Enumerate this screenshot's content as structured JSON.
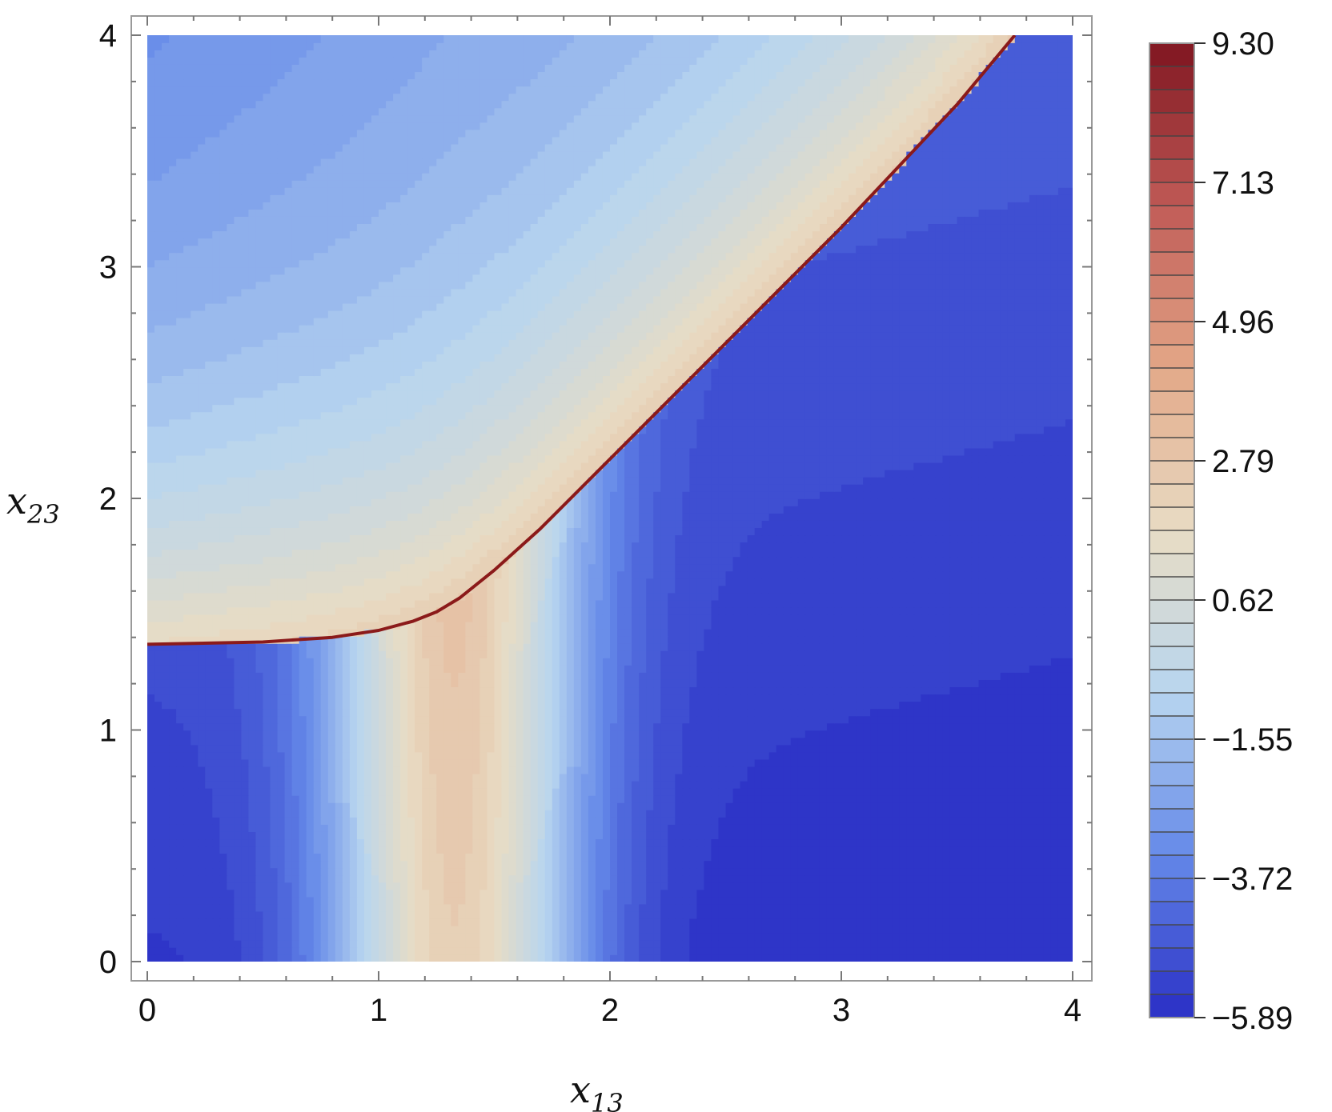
{
  "chart_data": {
    "type": "heatmap",
    "title": "",
    "xlabel": {
      "base": "x",
      "sub": "13"
    },
    "ylabel": {
      "base": "x",
      "sub": "23"
    },
    "xlim": [
      0,
      4
    ],
    "ylim": [
      0,
      4
    ],
    "x_ticks": [
      "0",
      "1",
      "2",
      "3",
      "4"
    ],
    "y_ticks": [
      "0",
      "1",
      "2",
      "3",
      "4"
    ],
    "colorbar": {
      "range": [
        -5.89,
        9.3
      ],
      "tick_values": [
        9.3,
        7.13,
        4.96,
        2.79,
        0.62,
        -1.55,
        -3.72,
        -5.89
      ],
      "tick_labels": [
        "9.30",
        "7.13",
        "4.96",
        "2.79",
        "0.62",
        "−1.55",
        "−3.72",
        "−5.89"
      ],
      "levels": 42,
      "colormap": [
        "#2a2fc6",
        "#6488e8",
        "#b8d5ef",
        "#e8dcc4",
        "#e3a888",
        "#c05a56",
        "#7f1520"
      ]
    },
    "boundary_curve": {
      "color": "#8b1a1a",
      "points": [
        [
          0,
          1.37
        ],
        [
          0.5,
          1.38
        ],
        [
          0.8,
          1.4
        ],
        [
          1.0,
          1.43
        ],
        [
          1.15,
          1.47
        ],
        [
          1.25,
          1.51
        ],
        [
          1.35,
          1.57
        ],
        [
          1.5,
          1.69
        ],
        [
          1.7,
          1.87
        ],
        [
          2.0,
          2.17
        ],
        [
          2.5,
          2.67
        ],
        [
          3.0,
          3.17
        ],
        [
          3.5,
          3.7
        ],
        [
          3.75,
          4.0
        ]
      ]
    },
    "grid": false
  }
}
